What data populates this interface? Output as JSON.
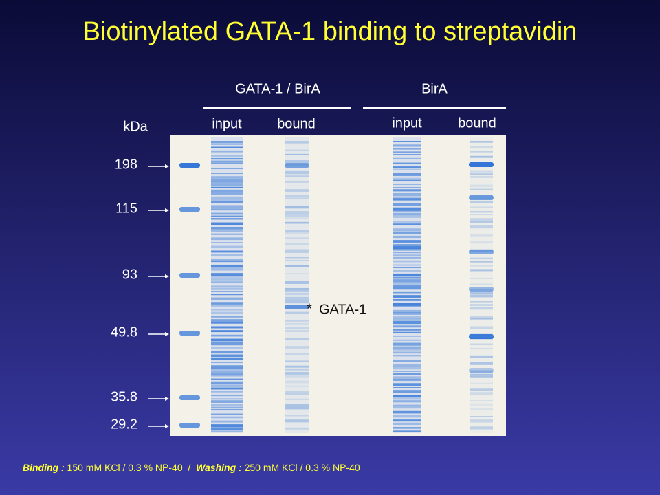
{
  "title": "Biotinylated GATA-1 binding to streptavidin",
  "groups": [
    {
      "label": "GATA-1 / BirA",
      "lanes": [
        "input",
        "bound"
      ]
    },
    {
      "label": "BirA",
      "lanes": [
        "input",
        "bound"
      ]
    }
  ],
  "axis_label": "kDa",
  "markers": [
    "198",
    "115",
    "93",
    "49.8",
    "35.8",
    "29.2"
  ],
  "annotation": "GATA-1",
  "footer": {
    "binding_label": "Binding :",
    "binding_text": "150 mM KCl / 0.3 % NP-40  /",
    "washing_label": "Washing :",
    "washing_text": "250 mM KCl / 0.3 % NP-40"
  }
}
